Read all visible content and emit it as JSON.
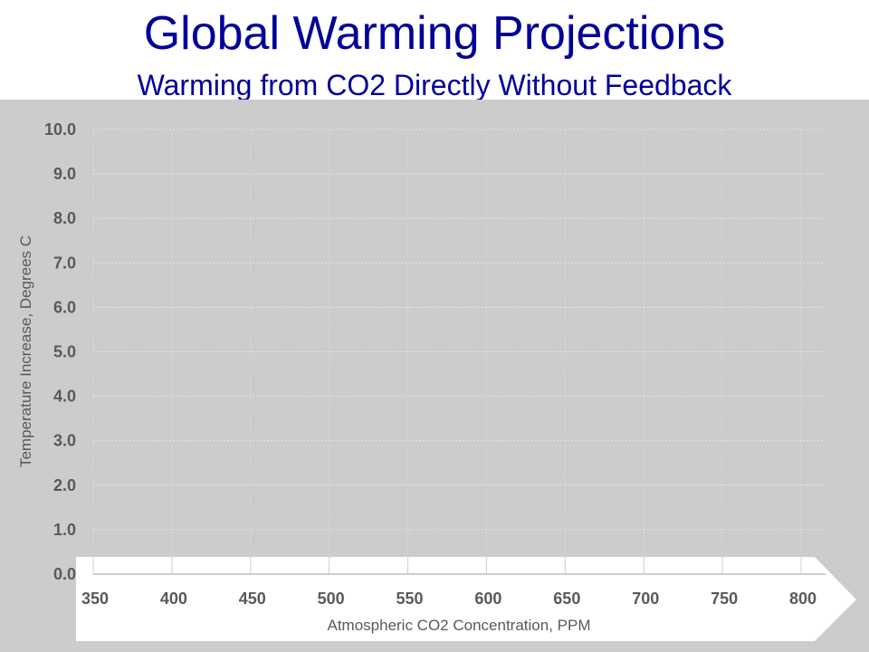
{
  "chart_data": {
    "type": "line",
    "title": "Global Warming Projections",
    "subtitle": "Warming from CO2 Directly Without Feedback",
    "xlabel": "Atmospheric CO2 Concentration, PPM",
    "ylabel": "Temperature Increase, Degrees C",
    "xlim": [
      350,
      815
    ],
    "ylim": [
      0,
      10
    ],
    "x_ticks": [
      "350",
      "400",
      "450",
      "500",
      "550",
      "600",
      "650",
      "700",
      "750",
      "800"
    ],
    "y_ticks": [
      "0.0",
      "1.0",
      "2.0",
      "3.0",
      "4.0",
      "5.0",
      "6.0",
      "7.0",
      "8.0",
      "9.0",
      "10.0"
    ],
    "grid": true,
    "series": []
  },
  "colors": {
    "title": "#000099",
    "background": "#CCCCCC",
    "axis_text": "#595959"
  }
}
